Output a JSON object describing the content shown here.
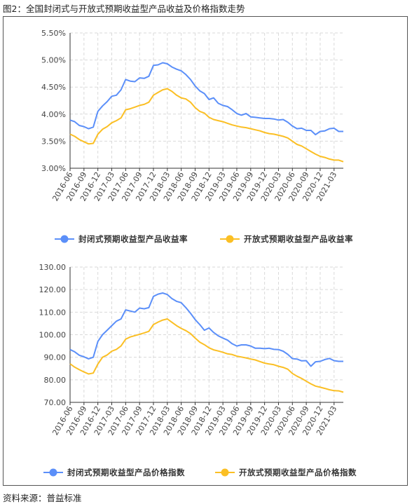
{
  "figure_title": "图2：全国封闭式与开放式预期收益型产品收益及价格指数走势",
  "source_note": "资料来源：普益标准",
  "colors": {
    "series1": "#5B8FF9",
    "series2": "#FBBF24",
    "grid": "#d9d9d9",
    "axis": "#333333"
  },
  "chart_data": [
    {
      "type": "line",
      "ylim": [
        3.0,
        5.5
      ],
      "yticks": [
        "3.00%",
        "3.50%",
        "4.00%",
        "4.50%",
        "5.00%",
        "5.50%"
      ],
      "ytick_values": [
        3.0,
        3.5,
        4.0,
        4.5,
        5.0,
        5.5
      ],
      "x_tick_labels": [
        "2016-06",
        "2016-09",
        "2016-12",
        "2017-03",
        "2017-06",
        "2017-09",
        "2017-12",
        "2018-03",
        "2018-06",
        "2018-09",
        "2018-12",
        "2019-03",
        "2019-06",
        "2019-09",
        "2019-12",
        "2020-03",
        "2020-06",
        "2020-09",
        "2020-12",
        "2021-03"
      ],
      "grid": true,
      "legend_position": "bottom-center",
      "series": [
        {
          "name": "封闭式预期收益型产品收益率",
          "values": [
            3.89,
            3.86,
            3.79,
            3.77,
            3.73,
            3.76,
            4.05,
            4.15,
            4.23,
            4.33,
            4.35,
            4.45,
            4.64,
            4.61,
            4.6,
            4.67,
            4.66,
            4.7,
            4.9,
            4.91,
            4.95,
            4.93,
            4.87,
            4.83,
            4.8,
            4.73,
            4.64,
            4.52,
            4.43,
            4.38,
            4.27,
            4.3,
            4.2,
            4.16,
            4.14,
            4.08,
            4.01,
            3.98,
            4.01,
            3.95,
            3.94,
            3.93,
            3.92,
            3.92,
            3.91,
            3.89,
            3.9,
            3.85,
            3.78,
            3.73,
            3.74,
            3.7,
            3.7,
            3.62,
            3.68,
            3.69,
            3.73,
            3.74,
            3.68,
            3.68
          ]
        },
        {
          "name": "开放式预期收益型产品收益率",
          "values": [
            3.63,
            3.59,
            3.53,
            3.49,
            3.45,
            3.46,
            3.63,
            3.72,
            3.77,
            3.84,
            3.88,
            3.93,
            4.08,
            4.1,
            4.13,
            4.16,
            4.18,
            4.22,
            4.35,
            4.4,
            4.45,
            4.47,
            4.42,
            4.35,
            4.3,
            4.28,
            4.22,
            4.12,
            4.05,
            4.02,
            3.94,
            3.9,
            3.88,
            3.86,
            3.83,
            3.8,
            3.78,
            3.76,
            3.75,
            3.73,
            3.71,
            3.69,
            3.66,
            3.64,
            3.63,
            3.61,
            3.59,
            3.56,
            3.5,
            3.44,
            3.41,
            3.36,
            3.31,
            3.26,
            3.22,
            3.2,
            3.17,
            3.15,
            3.15,
            3.12
          ]
        }
      ]
    },
    {
      "type": "line",
      "ylim": [
        70,
        130
      ],
      "yticks": [
        "70.00",
        "80.00",
        "90.00",
        "100.00",
        "110.00",
        "120.00",
        "130.00"
      ],
      "ytick_values": [
        70,
        80,
        90,
        100,
        110,
        120,
        130
      ],
      "x_tick_labels": [
        "2016-06",
        "2016-09",
        "2016-12",
        "2017-03",
        "2017-06",
        "2017-09",
        "2017-12",
        "2018-03",
        "2018-06",
        "2018-09",
        "2018-12",
        "2019-03",
        "2019-06",
        "2019-09",
        "2019-12",
        "2020-03",
        "2020-06",
        "2020-09",
        "2020-12",
        "2021-03"
      ],
      "grid": true,
      "legend_position": "bottom-center",
      "series": [
        {
          "name": "封闭式预期收益型产品价格指数",
          "values": [
            93.4,
            92.4,
            90.9,
            90.2,
            89.3,
            90,
            97,
            100,
            102,
            104,
            106,
            107,
            111,
            110.5,
            110,
            111.8,
            111.5,
            112,
            117,
            118,
            118.5,
            117.8,
            116,
            114.8,
            114.2,
            112,
            109.5,
            106.7,
            104.5,
            102,
            103,
            101,
            99.5,
            98.5,
            97.6,
            96,
            95,
            95.5,
            95.5,
            95,
            94,
            94,
            93.8,
            94,
            93.5,
            93.4,
            92.7,
            91.3,
            89.4,
            89.2,
            88.4,
            88.5,
            86,
            88,
            88.2,
            89,
            89.5,
            88.5,
            88.2,
            88.2
          ]
        },
        {
          "name": "开放式预期收益型产品价格指数",
          "values": [
            87.1,
            85.6,
            84.5,
            83.5,
            82.6,
            83,
            87,
            90,
            91,
            92.7,
            93.5,
            95,
            98,
            99,
            99.6,
            100.2,
            100.8,
            101.5,
            104.5,
            105.6,
            106.5,
            107,
            105.5,
            104,
            102.8,
            101.8,
            100.5,
            98.5,
            96.7,
            95.6,
            94.2,
            93.3,
            92.8,
            92.2,
            91.5,
            91.2,
            90.5,
            90.1,
            89.7,
            89.2,
            88.8,
            88.1,
            87.4,
            87,
            86.7,
            86,
            85.5,
            84.7,
            82.8,
            81.6,
            80.6,
            79.4,
            78.2,
            77.2,
            76.7,
            76.2,
            75.6,
            75.2,
            75.1,
            74.5
          ]
        }
      ]
    }
  ]
}
